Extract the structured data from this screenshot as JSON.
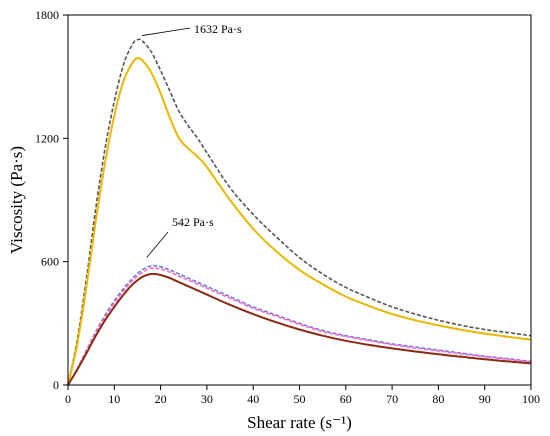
{
  "chart_data": {
    "type": "line",
    "xlabel": "Shear rate (s⁻¹)",
    "ylabel": "Viscosity (Pa·s)",
    "xlim": [
      0,
      100
    ],
    "ylim": [
      0,
      1800
    ],
    "xticks": [
      0,
      10,
      20,
      30,
      40,
      50,
      60,
      70,
      80,
      90,
      100
    ],
    "yticks": [
      0,
      600,
      1200,
      1800
    ],
    "grid": false,
    "annotations": [
      {
        "text": "1632 Pa·s",
        "x": 16,
        "y": 1700
      },
      {
        "text": "542 Pa·s",
        "x": 17,
        "y": 620
      }
    ],
    "series": [
      {
        "color": "#555555",
        "dash": "4,2",
        "x": [
          0,
          2,
          4,
          6,
          8,
          10,
          12,
          14,
          15,
          16,
          18,
          20,
          22,
          24,
          26,
          28,
          30,
          35,
          40,
          45,
          50,
          55,
          60,
          65,
          70,
          75,
          80,
          85,
          90,
          95,
          100
        ],
        "y": [
          0,
          220,
          520,
          860,
          1150,
          1380,
          1560,
          1660,
          1680,
          1675,
          1620,
          1530,
          1430,
          1330,
          1260,
          1200,
          1130,
          960,
          830,
          720,
          620,
          540,
          475,
          425,
          380,
          345,
          315,
          290,
          270,
          255,
          240
        ]
      },
      {
        "color": "#e8b800",
        "dash": "",
        "x": [
          0,
          2,
          4,
          6,
          8,
          10,
          12,
          14,
          15,
          16,
          18,
          20,
          22,
          24,
          26,
          28,
          30,
          35,
          40,
          45,
          50,
          55,
          60,
          65,
          70,
          75,
          80,
          85,
          90,
          95,
          100
        ],
        "y": [
          0,
          200,
          480,
          800,
          1080,
          1310,
          1480,
          1570,
          1590,
          1580,
          1520,
          1420,
          1300,
          1200,
          1150,
          1110,
          1060,
          900,
          760,
          650,
          560,
          490,
          430,
          385,
          345,
          315,
          290,
          268,
          250,
          235,
          220
        ]
      },
      {
        "color": "#6a7fd8",
        "dash": "4,2",
        "x": [
          0,
          2,
          4,
          6,
          8,
          10,
          12,
          14,
          16,
          18,
          20,
          22,
          24,
          26,
          28,
          30,
          35,
          40,
          45,
          50,
          55,
          60,
          65,
          70,
          75,
          80,
          85,
          90,
          95,
          100
        ],
        "y": [
          0,
          80,
          170,
          260,
          340,
          410,
          470,
          520,
          560,
          580,
          575,
          560,
          540,
          520,
          500,
          480,
          430,
          380,
          340,
          300,
          265,
          240,
          220,
          200,
          185,
          170,
          155,
          140,
          128,
          115
        ]
      },
      {
        "color": "#ff66cc",
        "dash": "4,2",
        "x": [
          0,
          2,
          4,
          6,
          8,
          10,
          12,
          14,
          16,
          18,
          20,
          22,
          24,
          26,
          28,
          30,
          35,
          40,
          45,
          50,
          55,
          60,
          65,
          70,
          75,
          80,
          85,
          90,
          95,
          100
        ],
        "y": [
          0,
          78,
          165,
          252,
          330,
          398,
          458,
          508,
          548,
          568,
          564,
          549,
          530,
          510,
          491,
          471,
          422,
          373,
          334,
          295,
          260,
          236,
          216,
          196,
          180,
          166,
          151,
          137,
          125,
          112
        ]
      },
      {
        "color": "#8b2a12",
        "dash": "",
        "x": [
          0,
          2,
          4,
          6,
          8,
          10,
          12,
          14,
          16,
          18,
          20,
          22,
          24,
          26,
          28,
          30,
          35,
          40,
          45,
          50,
          55,
          60,
          65,
          70,
          75,
          80,
          85,
          90,
          95,
          100
        ],
        "y": [
          0,
          75,
          155,
          240,
          315,
          380,
          440,
          490,
          525,
          540,
          535,
          520,
          500,
          480,
          460,
          440,
          390,
          345,
          305,
          270,
          240,
          215,
          195,
          178,
          163,
          150,
          137,
          125,
          115,
          105
        ]
      }
    ]
  }
}
